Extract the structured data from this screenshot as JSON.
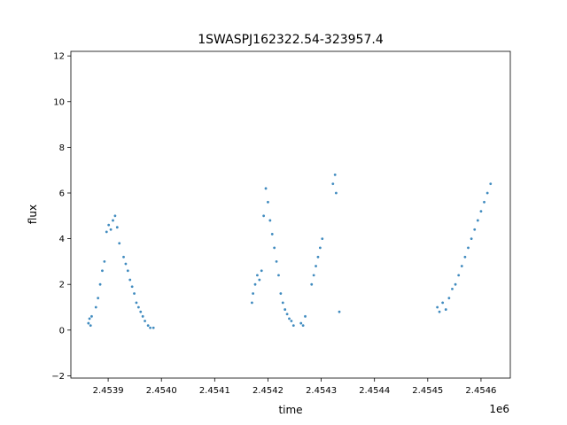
{
  "chart_data": {
    "type": "scatter",
    "title": "1SWASPJ162322.54-323957.4",
    "xlabel": "time",
    "ylabel": "flux",
    "x_offset_label": "1e6",
    "xlim": [
      2453830,
      2454655
    ],
    "ylim": [
      -2.1,
      12.2
    ],
    "x_ticks": [
      2453900,
      2454000,
      2454100,
      2454200,
      2454300,
      2454400,
      2454500,
      2454600
    ],
    "x_tick_labels": [
      "2.4539",
      "2.4540",
      "2.4541",
      "2.4542",
      "2.4543",
      "2.4544",
      "2.4545",
      "2.4546"
    ],
    "y_ticks": [
      -2,
      0,
      2,
      4,
      6,
      8,
      10,
      12
    ],
    "y_tick_labels": [
      "−2",
      "0",
      "2",
      "4",
      "6",
      "8",
      "10",
      "12"
    ],
    "grid": false,
    "marker_color": "#1f77b4",
    "series": [
      {
        "x": [
          2453863,
          2453865,
          2453867,
          2453869,
          2453877,
          2453881,
          2453885,
          2453889,
          2453893,
          2453897,
          2453901,
          2453905,
          2453909,
          2453913,
          2453917,
          2453921,
          2453929,
          2453933,
          2453937,
          2453941,
          2453945,
          2453949,
          2453953,
          2453957,
          2453961,
          2453965,
          2453969,
          2453975,
          2453979,
          2453985,
          2454170,
          2454172,
          2454176,
          2454180,
          2454184,
          2454188,
          2454192,
          2454196,
          2454200,
          2454204,
          2454208,
          2454212,
          2454216,
          2454220,
          2454224,
          2454228,
          2454232,
          2454236,
          2454240,
          2454244,
          2454248,
          2454262,
          2454266,
          2454270,
          2454282,
          2454286,
          2454290,
          2454294,
          2454298,
          2454302,
          2454322,
          2454326,
          2454328,
          2454334,
          2454518,
          2454522,
          2454528,
          2454534,
          2454540,
          2454546,
          2454552,
          2454558,
          2454564,
          2454570,
          2454576,
          2454582,
          2454588,
          2454594,
          2454600,
          2454606,
          2454612,
          2454618
        ],
        "y": [
          0.3,
          0.5,
          0.2,
          0.6,
          1.0,
          1.4,
          2.0,
          2.6,
          3.0,
          4.3,
          4.6,
          4.4,
          4.8,
          5.0,
          4.5,
          3.8,
          3.2,
          2.9,
          2.6,
          2.2,
          1.9,
          1.6,
          1.2,
          1.0,
          0.8,
          0.6,
          0.4,
          0.2,
          0.1,
          0.1,
          1.2,
          1.6,
          2.0,
          2.4,
          2.2,
          2.6,
          5.0,
          6.2,
          5.6,
          4.8,
          4.2,
          3.6,
          3.0,
          2.4,
          1.6,
          1.2,
          0.9,
          0.7,
          0.5,
          0.4,
          0.2,
          0.3,
          0.2,
          0.6,
          2.0,
          2.4,
          2.8,
          3.2,
          3.6,
          4.0,
          6.4,
          6.8,
          6.0,
          0.8,
          1.0,
          0.8,
          1.2,
          0.9,
          1.4,
          1.8,
          2.0,
          2.4,
          2.8,
          3.2,
          3.6,
          4.0,
          4.4,
          4.8,
          5.2,
          5.6,
          6.0,
          6.4
        ]
      }
    ]
  }
}
